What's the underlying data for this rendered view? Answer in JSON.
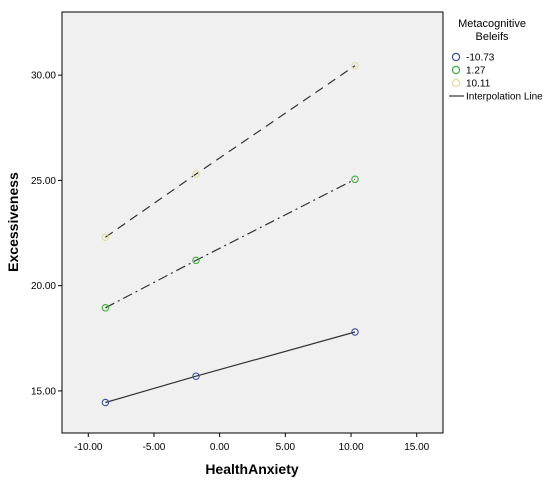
{
  "chart_data": {
    "type": "line",
    "xlabel": "HealthAnxiety",
    "ylabel": "Excessiveness",
    "xlim": [
      -12,
      17
    ],
    "ylim": [
      13,
      33
    ],
    "xticks": [
      -10,
      -5,
      0,
      5,
      10,
      15
    ],
    "xtick_labels": [
      "-10.00",
      "-5.00",
      "0.00",
      "5.00",
      "10.00",
      "15.00"
    ],
    "yticks": [
      15,
      20,
      25,
      30
    ],
    "ytick_labels": [
      "15.00",
      "20.00",
      "25.00",
      "30.00"
    ],
    "grid": false,
    "background": "#f0f0f0",
    "legend": {
      "title": "Metacognitive Beleifs",
      "position": "right",
      "interpolation_label": "Interpolation Line"
    },
    "series": [
      {
        "name": "-10.73",
        "color": "#3b4fa0",
        "line_style": "solid",
        "x": [
          -8.7,
          -1.8,
          10.3
        ],
        "y": [
          14.45,
          15.7,
          17.8
        ]
      },
      {
        "name": "1.27",
        "color": "#3fae3f",
        "line_style": "dashdot",
        "x": [
          -8.7,
          -1.8,
          10.3
        ],
        "y": [
          18.95,
          21.2,
          25.05
        ]
      },
      {
        "name": "10.11",
        "color": "#e0dd9a",
        "line_style": "dashed",
        "x": [
          -8.7,
          -1.8,
          10.3
        ],
        "y": [
          22.3,
          25.3,
          30.45
        ]
      }
    ]
  }
}
